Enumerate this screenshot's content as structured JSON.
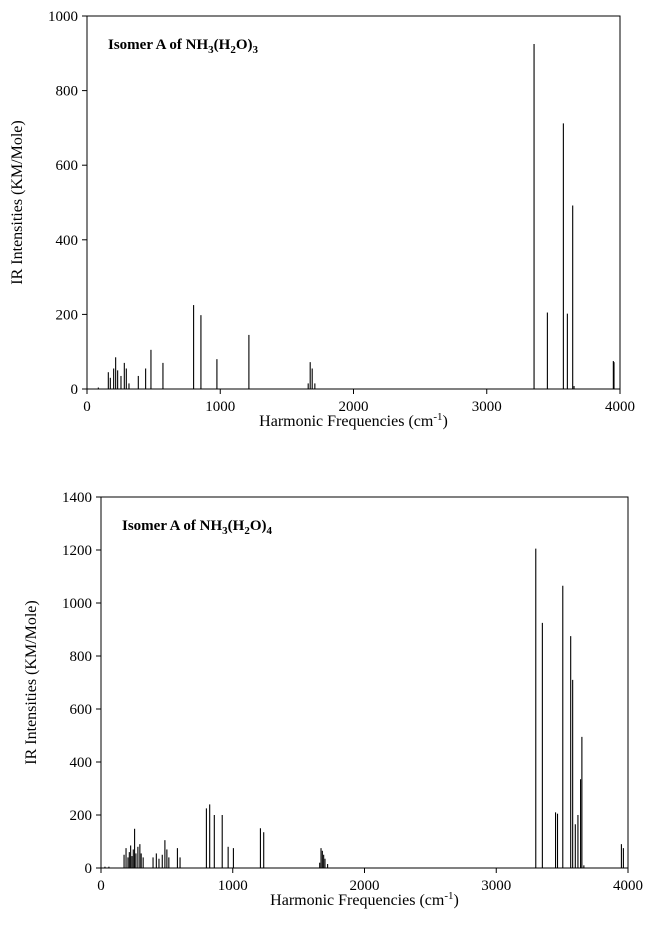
{
  "chart_data": [
    {
      "type": "bar",
      "title_main": "Isomer A of NH",
      "title_parts": [
        {
          "t": "Isomer A of NH",
          "s": false
        },
        {
          "t": "3",
          "s": true
        },
        {
          "t": "(H",
          "s": false
        },
        {
          "t": "2",
          "s": true
        },
        {
          "t": "O)",
          "s": false
        },
        {
          "t": "3",
          "s": true
        }
      ],
      "xlabel_main": "Harmonic Frequencies (cm",
      "xlabel_sup": "-1",
      "xlabel_end": ")",
      "ylabel": "IR Intensities (KM/Mole)",
      "xlim": [
        0,
        4000
      ],
      "ylim": [
        0,
        1000
      ],
      "xticks": [
        0,
        1000,
        2000,
        3000,
        4000
      ],
      "yticks": [
        0,
        200,
        400,
        600,
        800,
        1000
      ],
      "x": [
        85,
        160,
        175,
        200,
        215,
        230,
        255,
        280,
        295,
        315,
        385,
        440,
        480,
        570,
        800,
        855,
        975,
        1215,
        1660,
        1675,
        1690,
        1710,
        3355,
        3455,
        3575,
        3605,
        3645,
        3655,
        3950,
        3955
      ],
      "y": [
        4,
        45,
        30,
        55,
        85,
        50,
        35,
        70,
        55,
        15,
        35,
        55,
        105,
        70,
        225,
        198,
        80,
        145,
        15,
        72,
        55,
        15,
        925,
        205,
        712,
        202,
        492,
        8,
        75,
        72
      ]
    },
    {
      "type": "bar",
      "title_parts": [
        {
          "t": "Isomer A of NH",
          "s": false
        },
        {
          "t": "3",
          "s": true
        },
        {
          "t": "(H",
          "s": false
        },
        {
          "t": "2",
          "s": true
        },
        {
          "t": "O)",
          "s": false
        },
        {
          "t": "4",
          "s": true
        }
      ],
      "xlabel_main": "Harmonic Frequencies (cm",
      "xlabel_sup": "-1",
      "xlabel_end": ")",
      "ylabel": "IR Intensities (KM/Mole)",
      "xlim": [
        0,
        4000
      ],
      "ylim": [
        0,
        1400
      ],
      "xticks": [
        0,
        1000,
        2000,
        3000,
        4000
      ],
      "yticks": [
        0,
        200,
        400,
        600,
        800,
        1000,
        1200,
        1400
      ],
      "x": [
        30,
        60,
        175,
        190,
        205,
        215,
        225,
        235,
        245,
        255,
        265,
        280,
        295,
        305,
        320,
        395,
        420,
        440,
        465,
        485,
        500,
        515,
        580,
        600,
        800,
        825,
        860,
        920,
        965,
        1005,
        1210,
        1235,
        1660,
        1670,
        1680,
        1690,
        1700,
        1720,
        3300,
        3350,
        3450,
        3465,
        3505,
        3565,
        3580,
        3600,
        3620,
        3640,
        3650,
        3665,
        3950,
        3965
      ],
      "y": [
        5,
        5,
        50,
        75,
        40,
        60,
        85,
        45,
        70,
        148,
        55,
        80,
        90,
        55,
        40,
        40,
        55,
        35,
        50,
        105,
        70,
        40,
        75,
        40,
        225,
        240,
        200,
        200,
        80,
        75,
        150,
        135,
        20,
        75,
        65,
        50,
        35,
        15,
        1205,
        925,
        210,
        205,
        1065,
        875,
        710,
        165,
        200,
        335,
        495,
        10,
        90,
        75
      ]
    }
  ]
}
